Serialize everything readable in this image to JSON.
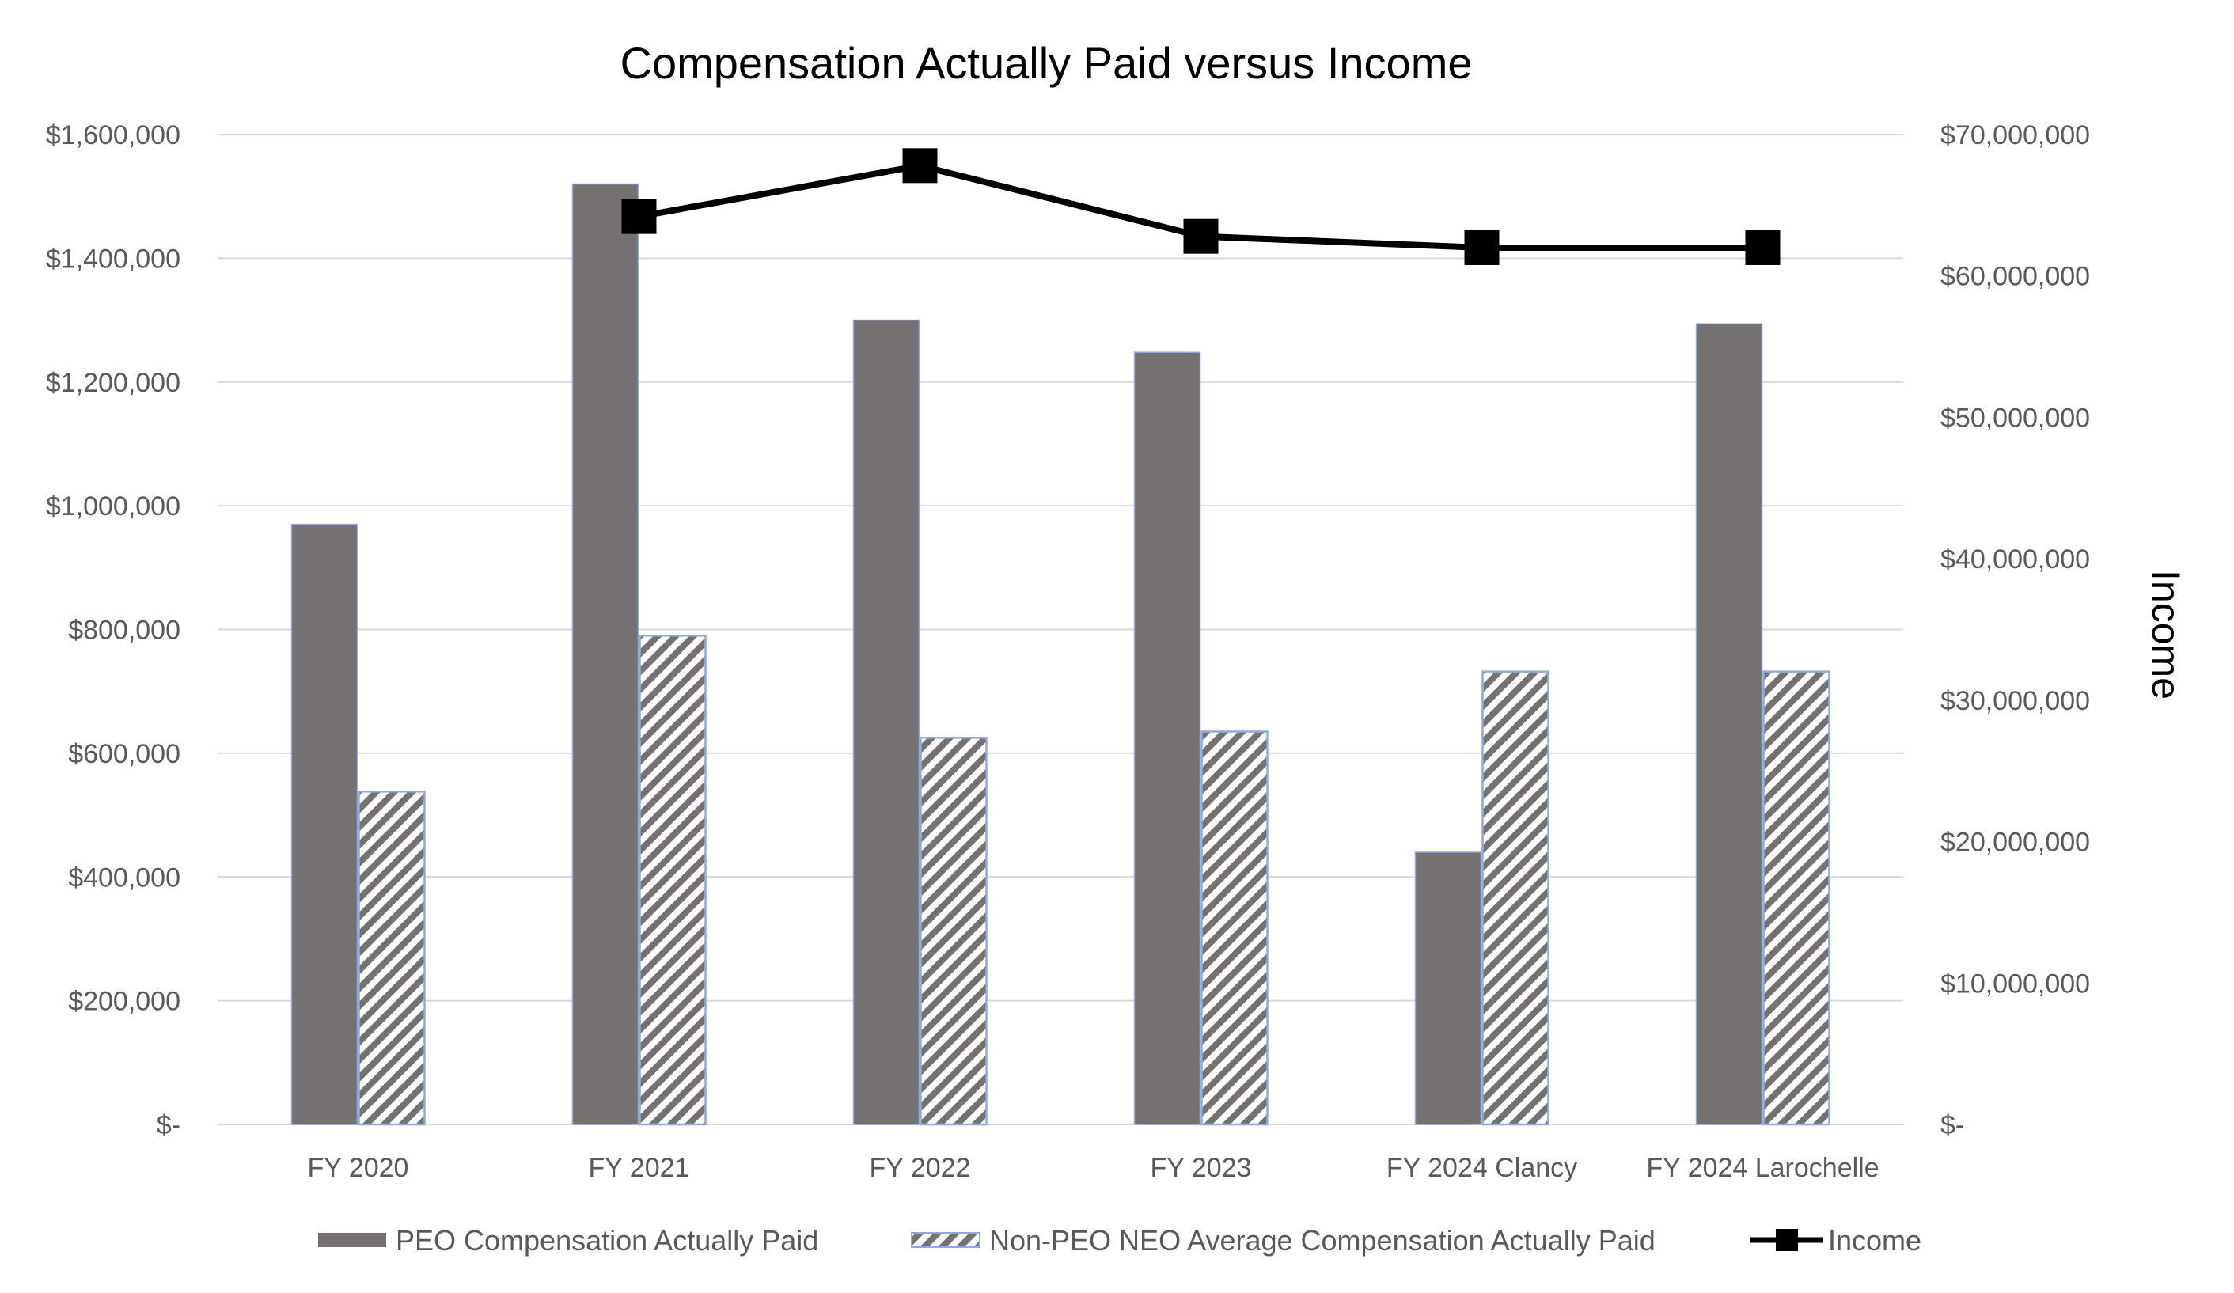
{
  "chart_data": {
    "type": "bar",
    "title": "Compensation Actually Paid versus Income",
    "categories": [
      "FY 2020",
      "FY 2021",
      "FY 2022",
      "FY 2023",
      "FY 2024 Clancy",
      "FY 2024 Larochelle"
    ],
    "series": [
      {
        "name": "PEO Compensation Actually Paid",
        "type": "bar",
        "axis": "left",
        "values": [
          970000,
          1520000,
          1300000,
          1248000,
          440000,
          1294000
        ]
      },
      {
        "name": "Non-PEO NEO Average Compensation Actually Paid",
        "type": "bar",
        "axis": "left",
        "pattern": "diagonal-hatch",
        "values": [
          538000,
          790000,
          625000,
          635000,
          732000,
          732000
        ]
      },
      {
        "name": "Income",
        "type": "line",
        "axis": "right",
        "values": [
          null,
          64200000,
          67800000,
          62800000,
          62000000,
          62000000
        ]
      }
    ],
    "left_axis": {
      "range": [
        0,
        1600000
      ],
      "ticks": [
        0,
        200000,
        400000,
        600000,
        800000,
        1000000,
        1200000,
        1400000,
        1600000
      ],
      "tick_labels": [
        "$-",
        "$200,000",
        "$400,000",
        "$600,000",
        "$800,000",
        "$1,000,000",
        "$1,200,000",
        "$1,400,000",
        "$1,600,000"
      ],
      "label": ""
    },
    "right_axis": {
      "range": [
        0,
        70000000
      ],
      "ticks": [
        0,
        10000000,
        20000000,
        30000000,
        40000000,
        50000000,
        60000000,
        70000000
      ],
      "tick_labels": [
        "$-",
        "$10,000,000",
        "$20,000,000",
        "$30,000,000",
        "$40,000,000",
        "$50,000,000",
        "$60,000,000",
        "$70,000,000"
      ],
      "label": "Income"
    },
    "xlabel": "",
    "grid": true,
    "legend_position": "bottom"
  },
  "colors": {
    "peo_bar": "#767171",
    "hatch": "#767171",
    "bar_outline": "#8faadc",
    "line": "#000000",
    "grid": "#d9d9d9"
  }
}
